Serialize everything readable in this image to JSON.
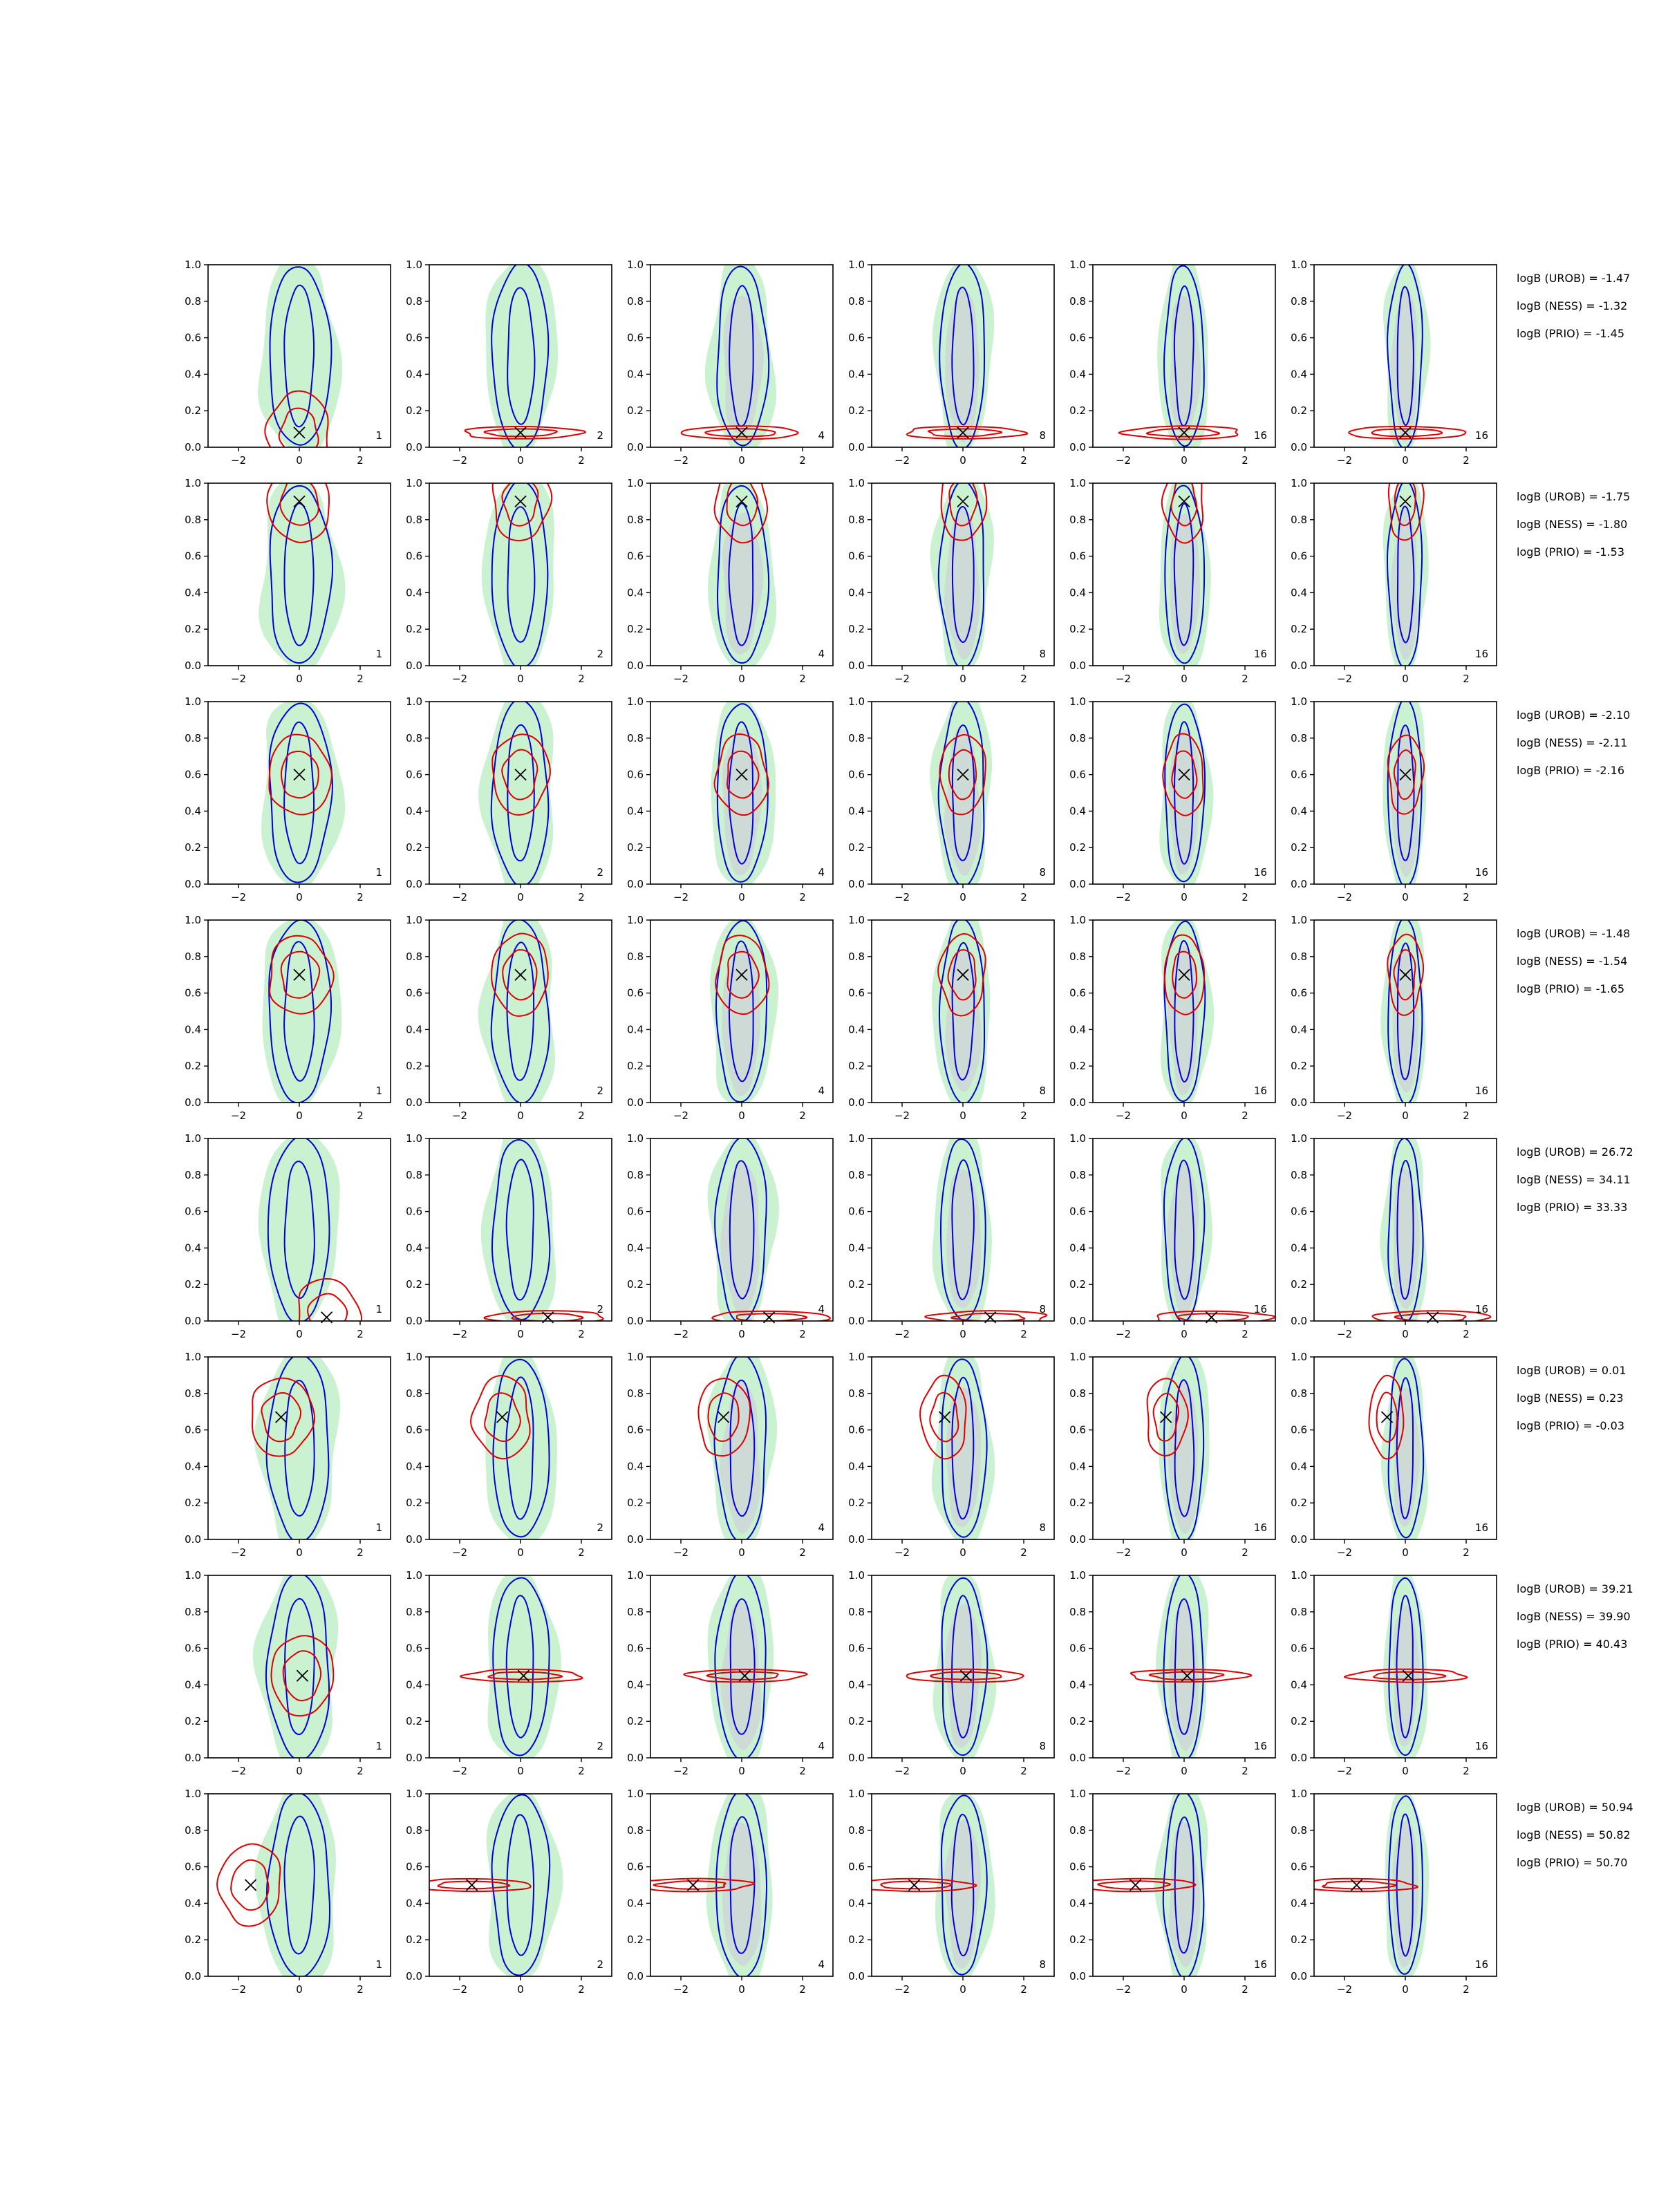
{
  "colors": {
    "uniform_fill": "#b8ecc0",
    "prior_fill": "#d0d0d8",
    "uniform_contour": "#0000dd",
    "prior_contour": "#dd0000",
    "truth_marker": "#000000"
  },
  "chart_data": {
    "type": "contour",
    "grid": {
      "rows": 8,
      "cols": 6
    },
    "xlim": [
      -3,
      3
    ],
    "ylim": [
      0.0,
      1.0
    ],
    "xticks": [
      "−2",
      "0",
      "2"
    ],
    "yticks": [
      "0.0",
      "0.2",
      "0.4",
      "0.6",
      "0.8",
      "1.0"
    ],
    "column_labels": [
      "1",
      "2",
      "4",
      "8",
      "16",
      "16"
    ],
    "rows": [
      {
        "truth": [
          0.0,
          0.08
        ],
        "logB": [
          "logB (UROB) = -1.47",
          "logB (NESS) = -1.32",
          "logB (PRIO) = -1.45"
        ]
      },
      {
        "truth": [
          0.0,
          0.9
        ],
        "logB": [
          "logB (UROB) = -1.75",
          "logB (NESS) = -1.80",
          "logB (PRIO) = -1.53"
        ]
      },
      {
        "truth": [
          0.0,
          0.6
        ],
        "logB": [
          "logB (UROB) = -2.10",
          "logB (NESS) = -2.11",
          "logB (PRIO) = -2.16"
        ]
      },
      {
        "truth": [
          0.0,
          0.7
        ],
        "logB": [
          "logB (UROB) = -1.48",
          "logB (NESS) = -1.54",
          "logB (PRIO) = -1.65"
        ]
      },
      {
        "truth": [
          0.9,
          0.02
        ],
        "logB": [
          "logB (UROB) = 26.72",
          "logB (NESS) = 34.11",
          "logB (PRIO) = 33.33"
        ]
      },
      {
        "truth": [
          -0.6,
          0.67
        ],
        "logB": [
          "logB (UROB) = 0.01",
          "logB (NESS) = 0.23",
          "logB (PRIO) = -0.03"
        ]
      },
      {
        "truth": [
          0.1,
          0.45
        ],
        "logB": [
          "logB (UROB) = 39.21",
          "logB (NESS) = 39.90",
          "logB (PRIO) = 40.43"
        ]
      },
      {
        "truth": [
          -1.6,
          0.5
        ],
        "logB": [
          "logB (UROB) = 50.94",
          "logB (NESS) = 50.82",
          "logB (PRIO) = 50.70"
        ]
      }
    ]
  }
}
